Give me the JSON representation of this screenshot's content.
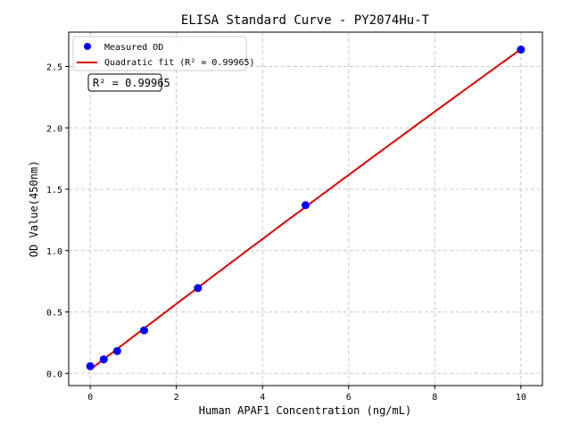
{
  "chart_data": {
    "type": "scatter",
    "title": "ELISA Standard Curve - PY2074Hu-T",
    "xlabel": "Human APAF1 Concentration (ng/mL)",
    "ylabel": "OD Value(450nm)",
    "xlim": [
      -0.5,
      10.5
    ],
    "ylim": [
      -0.1,
      2.78
    ],
    "xticks": [
      0,
      2,
      4,
      6,
      8,
      10
    ],
    "yticks": [
      0.0,
      0.5,
      1.0,
      1.5,
      2.0,
      2.5
    ],
    "xtick_labels": [
      "0",
      "2",
      "4",
      "6",
      "8",
      "10"
    ],
    "ytick_labels": [
      "0.0",
      "0.5",
      "1.0",
      "1.5",
      "2.0",
      "2.5"
    ],
    "grid": true,
    "legend_position": "top-left",
    "series": [
      {
        "name": "Measured OD",
        "kind": "scatter",
        "color": "#0000ff",
        "x": [
          0,
          0.3125,
          0.625,
          1.25,
          2.5,
          5,
          10
        ],
        "y": [
          0.058,
          0.113,
          0.181,
          0.35,
          0.695,
          1.37,
          2.638
        ]
      },
      {
        "name": "Quadratic fit (R² = 0.99965)",
        "kind": "fit-line",
        "color": "#dd0000"
      }
    ],
    "annotation": "R² = 0.99965"
  }
}
